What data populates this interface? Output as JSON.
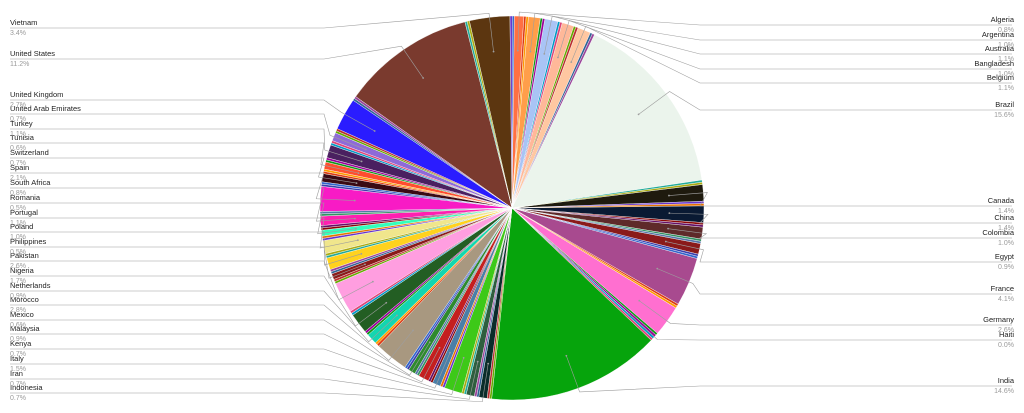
{
  "chart_data": {
    "type": "pie",
    "title": "",
    "slices": [
      {
        "name": "Algeria",
        "label": "0.8%",
        "value": 0.8,
        "color": "#ff7043"
      },
      {
        "name": "Argentina",
        "label": "1.0%",
        "value": 1.0,
        "color": "#ff9e4a"
      },
      {
        "name": "Australia",
        "label": "1.1%",
        "value": 1.1,
        "color": "#a9c4f5"
      },
      {
        "name": "Bangladesh",
        "label": "1.0%",
        "value": 1.0,
        "color": "#ffb899"
      },
      {
        "name": "Belgium",
        "label": "1.1%",
        "value": 1.1,
        "color": "#ffc7a1"
      },
      {
        "name": "Brazil",
        "label": "15.6%",
        "value": 15.6,
        "color": "#ebf4ec"
      },
      {
        "name": "Canada",
        "label": "1.4%",
        "value": 1.4,
        "color": "#1e1a0e"
      },
      {
        "name": "China",
        "label": "1.4%",
        "value": 1.4,
        "color": "#0a1a33"
      },
      {
        "name": "Colombia",
        "label": "1.0%",
        "value": 1.0,
        "color": "#5e2a2a"
      },
      {
        "name": "Egypt",
        "label": "0.9%",
        "value": 0.9,
        "color": "#8a1a1a"
      },
      {
        "name": "France",
        "label": "4.1%",
        "value": 4.1,
        "color": "#a84a8f"
      },
      {
        "name": "Germany",
        "label": "2.6%",
        "value": 2.6,
        "color": "#ff6fd0"
      },
      {
        "name": "Haiti",
        "label": "0.0%",
        "value": 0.0,
        "color": "#ff8a00"
      },
      {
        "name": "India",
        "label": "14.6%",
        "value": 14.6,
        "color": "#06a40c"
      },
      {
        "name": "Indonesia",
        "label": "0.7%",
        "value": 0.7,
        "color": "#0a2d2a"
      },
      {
        "name": "Iran",
        "label": "0.7%",
        "value": 0.7,
        "color": "#2e5e3e"
      },
      {
        "name": "Italy",
        "label": "1.5%",
        "value": 1.5,
        "color": "#3dc918"
      },
      {
        "name": "Kenya",
        "label": "0.7%",
        "value": 0.7,
        "color": "#4a7fa8"
      },
      {
        "name": "Malaysia",
        "label": "0.9%",
        "value": 0.9,
        "color": "#c41f1f"
      },
      {
        "name": "Mexico",
        "label": "0.6%",
        "value": 0.6,
        "color": "#2e8a2e"
      },
      {
        "name": "Morocco",
        "label": "2.8%",
        "value": 2.8,
        "color": "#a89880"
      },
      {
        "name": "Netherlands",
        "label": "0.9%",
        "value": 0.9,
        "color": "#12d6b0"
      },
      {
        "name": "Nigeria",
        "label": "1.7%",
        "value": 1.7,
        "color": "#235e23"
      },
      {
        "name": "Pakistan",
        "label": "2.6%",
        "value": 2.6,
        "color": "#ff9ee0"
      },
      {
        "name": "Philippines",
        "label": "0.5%",
        "value": 0.5,
        "color": "#8a1a1a"
      },
      {
        "name": "Poland",
        "label": "1.0%",
        "value": 1.0,
        "color": "#ffd21e"
      },
      {
        "name": "Portugal",
        "label": "1.1%",
        "value": 1.1,
        "color": "#f0e68c"
      },
      {
        "name": "Romania",
        "label": "0.5%",
        "value": 0.5,
        "color": "#33ffbb"
      },
      {
        "name": "South Africa",
        "label": "0.8%",
        "value": 0.8,
        "color": "#ff1fb0"
      },
      {
        "name": "Spain",
        "label": "2.1%",
        "value": 2.1,
        "color": "#f81bc5"
      },
      {
        "name": "Switzerland",
        "label": "0.7%",
        "value": 0.7,
        "color": "#3a0a14"
      },
      {
        "name": "Tunisia",
        "label": "0.6%",
        "value": 0.6,
        "color": "#ff4d2e"
      },
      {
        "name": "Turkey",
        "label": "1.1%",
        "value": 1.1,
        "color": "#4a2060"
      },
      {
        "name": "United Arab Emirates",
        "label": "0.7%",
        "value": 0.7,
        "color": "#8e6ad8"
      },
      {
        "name": "United Kingdom",
        "label": "2.7%",
        "value": 2.7,
        "color": "#2a1cff"
      },
      {
        "name": "United States",
        "label": "11.2%",
        "value": 11.2,
        "color": "#7a3a2e"
      },
      {
        "name": "Vietnam",
        "label": "3.4%",
        "value": 3.4,
        "color": "#5c3610"
      }
    ]
  }
}
